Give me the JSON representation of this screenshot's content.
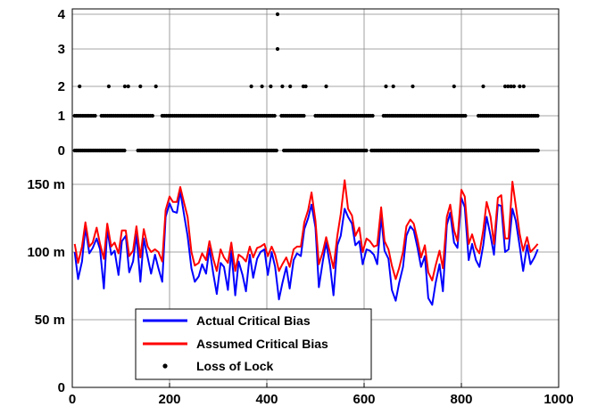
{
  "chart_data": {
    "type": "line",
    "x_ticks": [
      "0",
      "200",
      "400",
      "600",
      "800",
      "1000"
    ],
    "xlim": [
      0,
      1000
    ],
    "upper_panel": {
      "y_ticks": [
        "0",
        "1",
        "2",
        "3",
        "4"
      ],
      "ylim": [
        0,
        4
      ],
      "series_name": "Loss of Lock",
      "marker": "dot",
      "color": "#000000",
      "level_0_x_ranges": [
        [
          5,
          110
        ],
        [
          135,
          420
        ],
        [
          435,
          605
        ],
        [
          615,
          960
        ]
      ],
      "level_1_x_ranges": [
        [
          5,
          50
        ],
        [
          60,
          165
        ],
        [
          185,
          420
        ],
        [
          430,
          480
        ],
        [
          500,
          620
        ],
        [
          640,
          810
        ],
        [
          835,
          960
        ]
      ],
      "level_2_x": [
        15,
        75,
        108,
        115,
        140,
        172,
        368,
        390,
        408,
        432,
        448,
        475,
        480,
        522,
        645,
        660,
        700,
        785,
        845,
        890,
        896,
        902,
        908,
        920,
        928
      ],
      "level_3_x": [
        422
      ],
      "level_4_x": [
        422
      ]
    },
    "lower_panel": {
      "y_ticks": [
        "0",
        "50 m",
        "100 m",
        "150 m"
      ],
      "ylim": [
        0,
        150
      ],
      "grid": true,
      "series": [
        {
          "name": "Actual Critical Bias",
          "color": "#0000ff",
          "x": [
            5,
            12,
            20,
            27,
            35,
            42,
            50,
            57,
            65,
            72,
            80,
            87,
            95,
            102,
            110,
            117,
            125,
            132,
            140,
            147,
            155,
            162,
            170,
            177,
            185,
            192,
            200,
            207,
            215,
            222,
            230,
            237,
            245,
            252,
            260,
            267,
            275,
            282,
            290,
            297,
            305,
            312,
            320,
            327,
            335,
            342,
            350,
            357,
            365,
            372,
            380,
            387,
            395,
            402,
            410,
            417,
            425,
            432,
            440,
            447,
            455,
            462,
            470,
            477,
            485,
            492,
            500,
            507,
            515,
            522,
            530,
            537,
            545,
            552,
            560,
            567,
            575,
            582,
            590,
            597,
            605,
            612,
            620,
            627,
            635,
            642,
            650,
            657,
            665,
            672,
            680,
            687,
            695,
            702,
            710,
            717,
            725,
            732,
            740,
            747,
            755,
            762,
            770,
            777,
            785,
            792,
            800,
            807,
            815,
            822,
            830,
            837,
            845,
            852,
            860,
            867,
            875,
            882,
            890,
            897,
            905,
            912,
            920,
            927,
            935,
            942,
            950,
            957
          ],
          "y": [
            100,
            80,
            93,
            118,
            99,
            103,
            110,
            102,
            73,
            117,
            98,
            101,
            83,
            108,
            112,
            85,
            93,
            113,
            78,
            110,
            96,
            84,
            98,
            88,
            78,
            126,
            136,
            130,
            129,
            145,
            127,
            112,
            88,
            78,
            82,
            91,
            84,
            103,
            84,
            69,
            92,
            89,
            72,
            101,
            68,
            93,
            83,
            71,
            98,
            81,
            95,
            100,
            102,
            83,
            100,
            89,
            65,
            77,
            89,
            73,
            94,
            99,
            97,
            117,
            125,
            135,
            118,
            74,
            93,
            107,
            90,
            68,
            105,
            112,
            132,
            126,
            121,
            105,
            108,
            91,
            102,
            101,
            98,
            91,
            126,
            101,
            95,
            72,
            64,
            77,
            89,
            112,
            119,
            116,
            103,
            89,
            97,
            66,
            61,
            77,
            91,
            71,
            120,
            129,
            107,
            103,
            140,
            133,
            94,
            106,
            94,
            89,
            105,
            126,
            112,
            98,
            135,
            134,
            100,
            102,
            132,
            123,
            104,
            86,
            105,
            91,
            96,
            102
          ]
        },
        {
          "name": "Assumed Critical Bias",
          "color": "#ff0000",
          "x": [
            5,
            12,
            20,
            27,
            35,
            42,
            50,
            57,
            65,
            72,
            80,
            87,
            95,
            102,
            110,
            117,
            125,
            132,
            140,
            147,
            155,
            162,
            170,
            177,
            185,
            192,
            200,
            207,
            215,
            222,
            230,
            237,
            245,
            252,
            260,
            267,
            275,
            282,
            290,
            297,
            305,
            312,
            320,
            327,
            335,
            342,
            350,
            357,
            365,
            372,
            380,
            387,
            395,
            402,
            410,
            417,
            425,
            432,
            440,
            447,
            455,
            462,
            470,
            477,
            485,
            492,
            500,
            507,
            515,
            522,
            530,
            537,
            545,
            552,
            560,
            567,
            575,
            582,
            590,
            597,
            605,
            612,
            620,
            627,
            635,
            642,
            650,
            657,
            665,
            672,
            680,
            687,
            695,
            702,
            710,
            717,
            725,
            732,
            740,
            747,
            755,
            762,
            770,
            777,
            785,
            792,
            800,
            807,
            815,
            822,
            830,
            837,
            845,
            852,
            860,
            867,
            875,
            882,
            890,
            897,
            905,
            912,
            920,
            927,
            935,
            942,
            950,
            957
          ],
          "y": [
            106,
            92,
            104,
            122,
            104,
            107,
            118,
            106,
            95,
            121,
            104,
            107,
            99,
            116,
            116,
            97,
            101,
            119,
            96,
            117,
            104,
            100,
            102,
            100,
            93,
            131,
            141,
            137,
            137,
            148,
            136,
            126,
            100,
            90,
            92,
            99,
            94,
            108,
            95,
            86,
            102,
            96,
            92,
            107,
            86,
            98,
            96,
            93,
            104,
            96,
            103,
            104,
            106,
            97,
            104,
            98,
            86,
            91,
            96,
            89,
            102,
            104,
            104,
            122,
            131,
            144,
            123,
            91,
            100,
            111,
            99,
            88,
            112,
            128,
            153,
            132,
            127,
            112,
            118,
            100,
            110,
            108,
            104,
            105,
            133,
            108,
            102,
            90,
            80,
            88,
            100,
            119,
            124,
            121,
            109,
            96,
            105,
            85,
            79,
            90,
            101,
            88,
            126,
            135,
            116,
            108,
            146,
            141,
            106,
            113,
            103,
            99,
            116,
            137,
            126,
            106,
            140,
            142,
            110,
            110,
            152,
            134,
            113,
            101,
            111,
            100,
            103,
            106
          ]
        }
      ]
    },
    "legend": {
      "placement": "bottom-left",
      "entries": [
        {
          "label": "Actual Critical Bias",
          "color": "#0000ff",
          "style": "line"
        },
        {
          "label": "Assumed Critical Bias",
          "color": "#ff0000",
          "style": "line"
        },
        {
          "label": "Loss of Lock",
          "color": "#000000",
          "style": "dot"
        }
      ]
    }
  }
}
